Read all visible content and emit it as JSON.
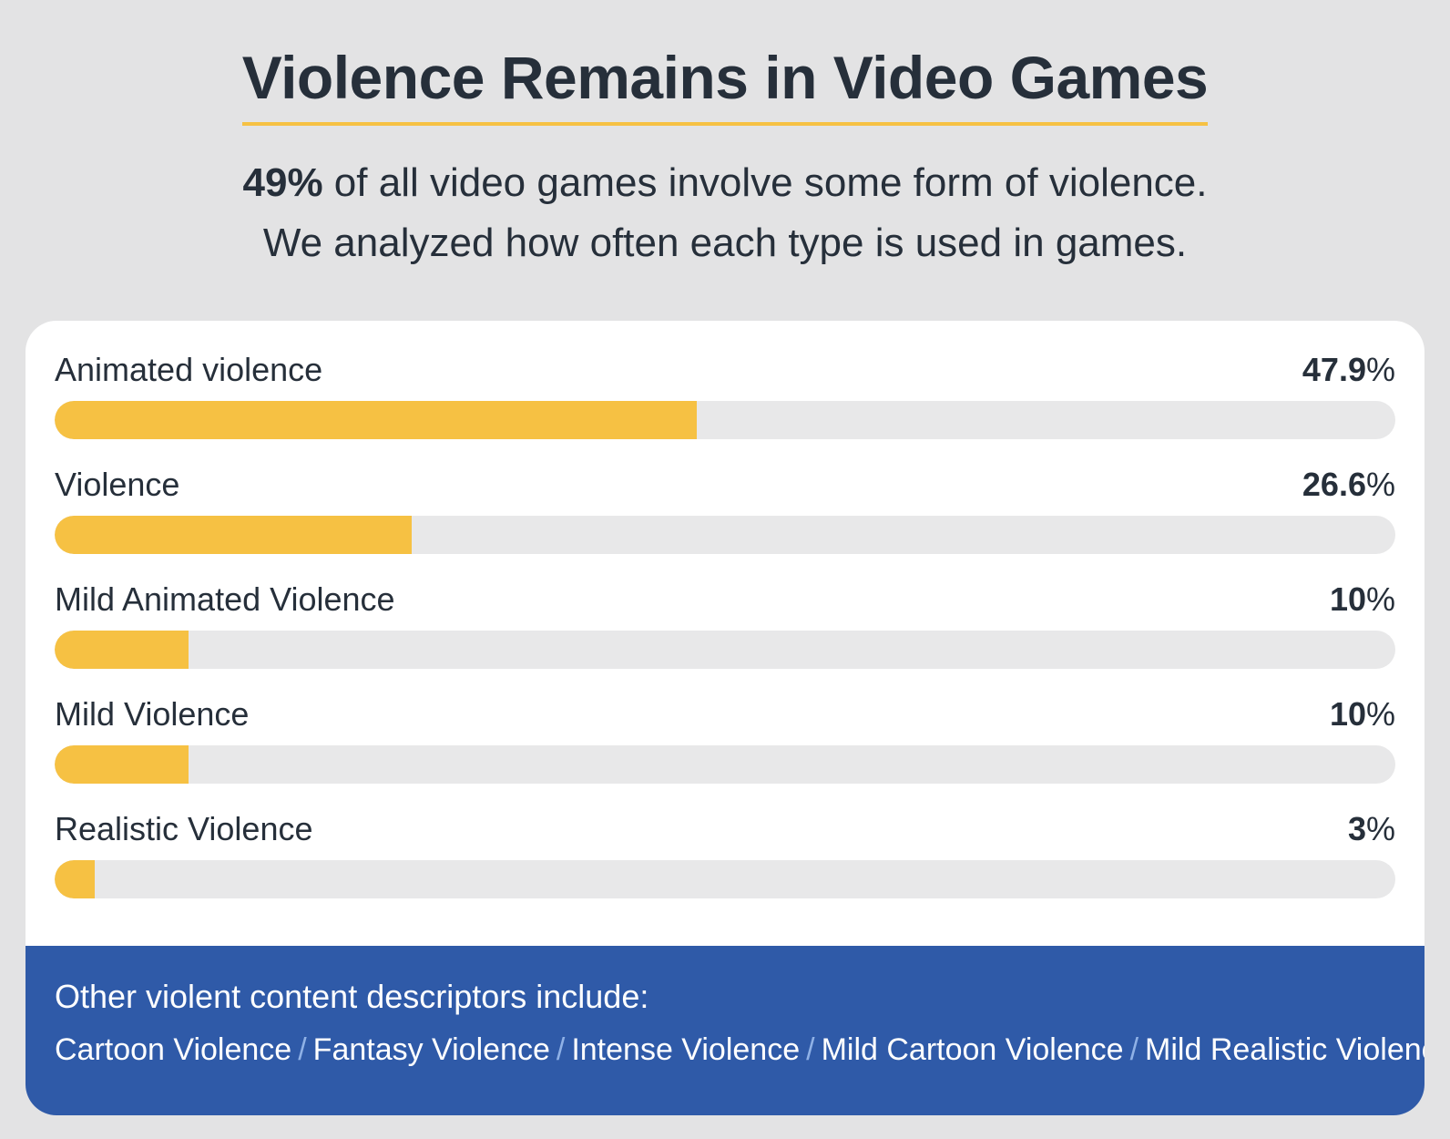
{
  "header": {
    "title": "Violence Remains in Video Games",
    "subtitle_bold": "49%",
    "subtitle_line1_rest": " of all video games involve some form of violence.",
    "subtitle_line2": "We analyzed how often each type is used in games."
  },
  "colors": {
    "bar_fill": "#f6c143",
    "bar_track": "#e8e8e9",
    "footer_bg": "#2f5aa8",
    "separator": "#8fb1e6",
    "text": "#262f3a",
    "page_bg": "#e3e3e4"
  },
  "chart_data": {
    "type": "bar",
    "orientation": "horizontal",
    "title": "Violence Remains in Video Games",
    "categories": [
      "Animated violence",
      "Violence",
      "Mild Animated Violence",
      "Mild Violence",
      "Realistic Violence"
    ],
    "values": [
      47.9,
      26.6,
      10,
      10,
      3
    ],
    "value_labels": [
      "47.9",
      "26.6",
      "10",
      "10",
      "3"
    ],
    "unit": "%",
    "xlim": [
      0,
      100
    ],
    "grid": false
  },
  "footer": {
    "heading": "Other violent content descriptors include:",
    "items": [
      "Cartoon Violence",
      "Fantasy Violence",
      "Intense Violence",
      "Mild Cartoon Violence",
      "Mild Realistic Violence"
    ],
    "separator": "/"
  }
}
